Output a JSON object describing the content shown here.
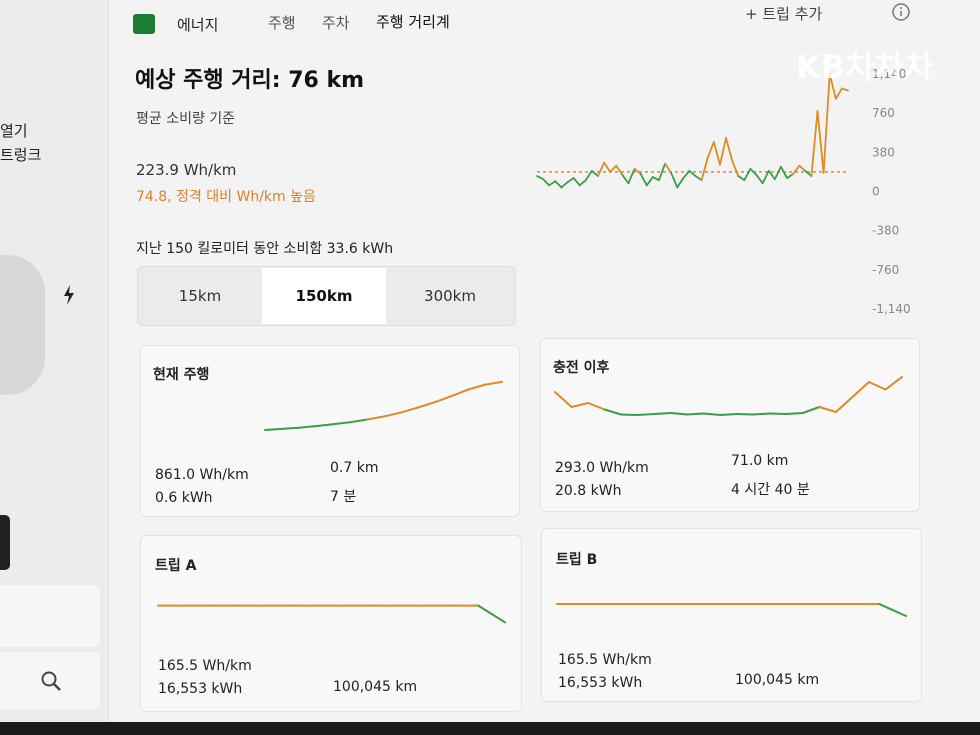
{
  "nav": {
    "section": "에너지",
    "tabs": [
      "주행",
      "주차",
      "주행 거리계"
    ],
    "add_trip": "+ 트립 추가"
  },
  "watermark": "KB차차차",
  "sidebar": {
    "items": [
      "열기",
      "트렁크"
    ]
  },
  "summary": {
    "title": "예상 주행 거리: 76 km",
    "basis": "평균 소비량 기준",
    "average": "223.9 Wh/km",
    "warning": "74.8, 정격 대비 Wh/km 높음",
    "recent": "지난 150 킬로미터 동안 소비함 33.6 kWh"
  },
  "range_tabs": {
    "options": [
      "15km",
      "150km",
      "300km"
    ],
    "selected": 1
  },
  "chart_data": {
    "type": "line",
    "series": [
      {
        "color": "#e08a24",
        "below_color": "#3a9e45",
        "values": [
          150,
          120,
          60,
          100,
          40,
          90,
          130,
          60,
          110,
          200,
          150,
          280,
          190,
          250,
          160,
          80,
          220,
          170,
          60,
          140,
          110,
          270,
          180,
          40,
          130,
          200,
          150,
          110,
          330,
          480,
          260,
          520,
          300,
          150,
          110,
          220,
          160,
          80,
          200,
          120,
          240,
          130,
          170,
          250,
          200,
          150,
          780,
          180,
          1140,
          900,
          1000,
          980
        ]
      }
    ],
    "reference": 190,
    "ylim": [
      -1140,
      1140
    ],
    "yticks": [
      {
        "value": 1140,
        "label": "1,140"
      },
      760,
      380,
      0,
      -380,
      -760,
      {
        "value": -1140,
        "label": "-1,140"
      }
    ]
  },
  "cards": [
    {
      "title": "현재 주행",
      "stats": [
        "861.0 Wh/km",
        "0.6 kWh",
        "0.7 km",
        "7 분"
      ],
      "trend": {
        "values": [
          0,
          3,
          6,
          10,
          15,
          20,
          27,
          35,
          45,
          58,
          72,
          88,
          105,
          118,
          125
        ],
        "ylim": [
          0,
          130
        ],
        "reference": 30
      }
    },
    {
      "title": "충전 이후",
      "stats": [
        "293.0 Wh/km",
        "20.8 kWh",
        "71.0 km",
        "4 시간 40 분"
      ],
      "trend": {
        "values": [
          60,
          30,
          38,
          25,
          15,
          14,
          16,
          18,
          15,
          17,
          14,
          16,
          15,
          17,
          16,
          18,
          30,
          20,
          50,
          80,
          65,
          90
        ],
        "ylim": [
          0,
          100
        ],
        "reference": 24
      }
    },
    {
      "title": "트립 A",
      "stats": [
        "165.5 Wh/km",
        "16,553 kWh",
        "100,045 km"
      ],
      "trend": {
        "values": [
          100,
          100,
          100,
          100,
          100,
          100,
          100,
          100,
          100,
          100,
          100,
          100,
          100,
          70
        ],
        "ylim": [
          60,
          110
        ],
        "reference": 90
      }
    },
    {
      "title": "트립 B",
      "stats": [
        "165.5 Wh/km",
        "16,553 kWh",
        "100,045 km"
      ],
      "trend": {
        "values": [
          100,
          100,
          100,
          100,
          100,
          100,
          100,
          100,
          100,
          100,
          100,
          100,
          100,
          70
        ],
        "ylim": [
          60,
          110
        ],
        "reference": 90
      }
    }
  ]
}
